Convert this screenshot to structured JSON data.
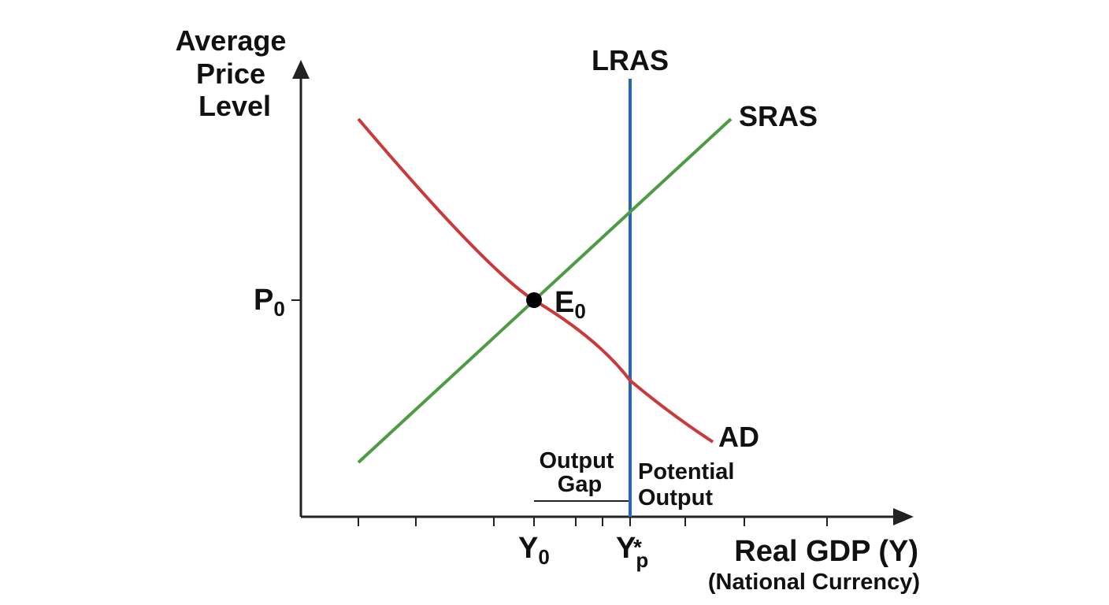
{
  "axes": {
    "y_label_lines": [
      "Average",
      "Price",
      "Level"
    ],
    "x_label": "Real GDP (Y)",
    "x_sublabel": "(National Currency)"
  },
  "curves": {
    "lras": {
      "label": "LRAS",
      "color": "#2a66b0"
    },
    "sras": {
      "label": "SRAS",
      "color": "#4e9a45"
    },
    "ad": {
      "label": "AD",
      "color": "#c93a3a"
    }
  },
  "equilibrium": {
    "point_base": "E",
    "point_sub": "0",
    "price_base": "P",
    "price_sub": "0"
  },
  "x_ticks": {
    "y0_base": "Y",
    "y0_sub": "0",
    "yp_base": "Y",
    "yp_sub": "p",
    "yp_sup": "*"
  },
  "annotations": {
    "output_gap_lines": [
      "Output",
      "Gap"
    ],
    "potential_output_lines": [
      "Potential",
      "Output"
    ]
  },
  "colors": {
    "axis": "#222222",
    "text": "#111111",
    "lras": "#2a66b0",
    "sras": "#4e9a45",
    "ad": "#c93a3a"
  }
}
